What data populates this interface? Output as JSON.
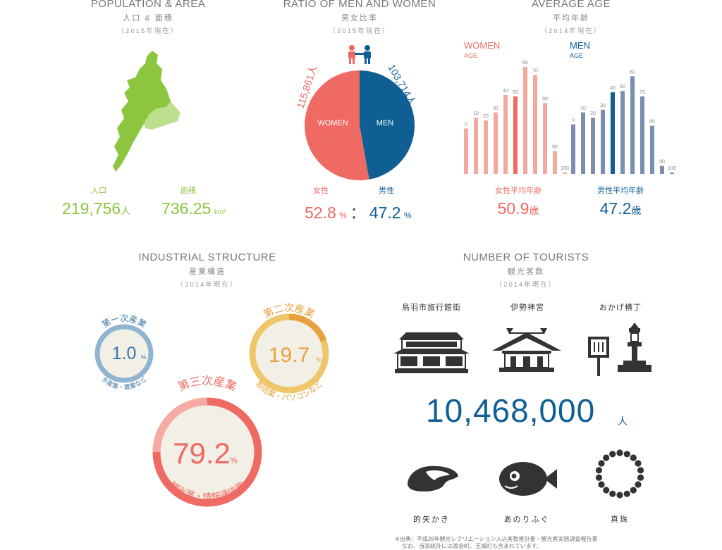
{
  "population": {
    "title_en": "POPULATION & AREA",
    "title_ja": "人口 & 面積",
    "year": "（2015年現在）",
    "pop_label": "人口",
    "pop_value": "219,756",
    "pop_unit": "人",
    "area_label": "面積",
    "area_value": "736.25",
    "area_unit": "km²"
  },
  "ratio": {
    "title_en": "RATIO OF MEN AND WOMEN",
    "title_ja": "男女比率",
    "year": "（2015年現在）",
    "women_label": "WOMEN",
    "men_label": "MEN",
    "women_count": "115,861人",
    "men_count": "103,714人",
    "women_ja": "女性",
    "men_ja": "男性",
    "women_pct": "52.8",
    "men_pct": "47.2",
    "pct_unit": "%",
    "separator": "：",
    "colors": {
      "women": "#ef6a62",
      "men": "#0f5f95"
    }
  },
  "age": {
    "title_en": "AVERAGE AGE",
    "title_ja": "平均年齢",
    "year": "（2014年現在）",
    "women_label": "WOMEN",
    "women_sub": "AGE",
    "men_label": "MEN",
    "men_sub": "AGE",
    "women_avg_label": "女性平均年齢",
    "men_avg_label": "男性平均年齢",
    "women_avg": "50.9",
    "men_avg": "47.2",
    "avg_unit": "歳"
  },
  "industry": {
    "title_en": "INDUSTRIAL STRUCTURE",
    "title_ja": "産業構造",
    "year": "（2014年現在）",
    "primary_label": "第一次産業",
    "primary_sub": "水産業・農業など",
    "primary_value": "1.0",
    "secondary_label": "第二次産業",
    "secondary_sub": "製造業・パソコンなど",
    "secondary_value": "19.7",
    "tertiary_label": "第三次産業",
    "tertiary_sub": "観光業・情報通信業",
    "tertiary_value": "79.2",
    "pct_unit": "%"
  },
  "tourists": {
    "title_en": "NUMBER OF TOURISTS",
    "title_ja": "観光客数",
    "year": "（2014年現在）",
    "spot1": "鳥羽市旅行館街",
    "spot2": "伊勢神宮",
    "spot3": "おかげ横丁",
    "total": "10,468,000",
    "total_unit": "人",
    "item1": "的矢かき",
    "item2": "あのりふぐ",
    "item3": "真珠",
    "note1": "※出典：平成26年観光レクリエーション入込客数推計量・観光客実態調査報告書",
    "note2": "なお、当該統計には渡会町、玉城町も含まれています。"
  },
  "chart_data": [
    {
      "type": "pie",
      "categories": [
        "WOMEN",
        "MEN"
      ],
      "values": [
        52.8,
        47.2
      ],
      "counts": [
        115861,
        103714
      ],
      "title": "RATIO OF MEN AND WOMEN"
    },
    {
      "type": "bar",
      "title": "AVERAGE AGE",
      "categories": [
        "0",
        "10",
        "20",
        "30",
        "40",
        "50",
        "60",
        "70",
        "80",
        "90",
        "100"
      ],
      "series": [
        {
          "name": "WOMEN",
          "values": [
            3.4,
            4.2,
            4.0,
            4.6,
            5.9,
            5.8,
            8.0,
            7.4,
            5.3,
            1.7,
            0.1
          ],
          "highlight_index": 5,
          "colors": [
            "#f2a9a0",
            "#ef6a62"
          ]
        },
        {
          "name": "MEN",
          "values": [
            3.7,
            4.6,
            4.2,
            4.8,
            6.1,
            6.2,
            7.3,
            5.8,
            3.6,
            0.6,
            0.1
          ],
          "highlight_index": 4,
          "colors": [
            "#7a8fb0",
            "#0f5f95"
          ]
        }
      ]
    },
    {
      "type": "pie",
      "title": "INDUSTRIAL STRUCTURE",
      "categories": [
        "第一次産業",
        "第二次産業",
        "第三次産業"
      ],
      "values": [
        1.0,
        19.7,
        79.2
      ]
    }
  ]
}
